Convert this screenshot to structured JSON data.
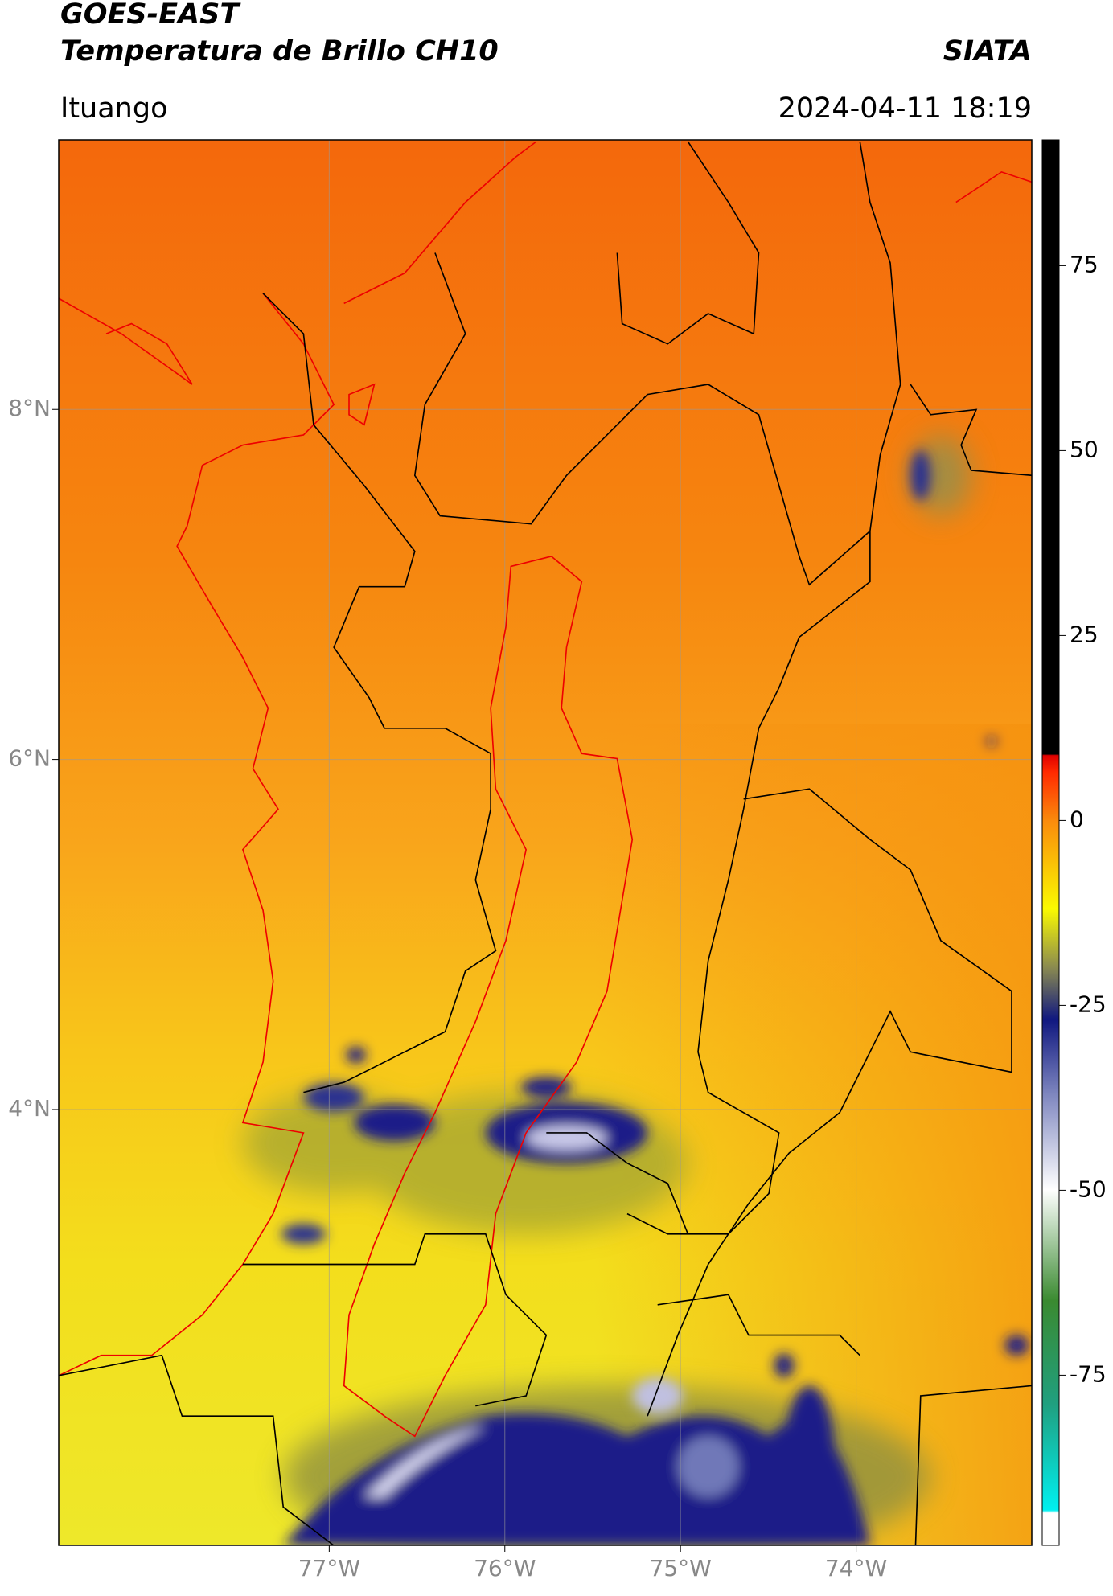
{
  "chart_data": {
    "type": "map",
    "title": "GOES-EAST",
    "subtitle": "Temperatura de Brillo CH10",
    "source": "SIATA",
    "location": "Ituango",
    "datetime": "2024-04-11 18:19",
    "xlim": [
      -78.54,
      -73.0
    ],
    "ylim": [
      1.51,
      9.54
    ],
    "xticks": [
      {
        "value": -77,
        "label": "77°W"
      },
      {
        "value": -76,
        "label": "76°W"
      },
      {
        "value": -75,
        "label": "75°W"
      },
      {
        "value": -74,
        "label": "74°W"
      }
    ],
    "yticks": [
      {
        "value": 4,
        "label": "4°N"
      },
      {
        "value": 6,
        "label": "6°N"
      },
      {
        "value": 8,
        "label": "8°N"
      }
    ],
    "grid": true,
    "clim": [
      -98,
      92
    ],
    "cticks": [
      -75,
      -50,
      -25,
      0,
      25,
      50,
      75
    ]
  }
}
